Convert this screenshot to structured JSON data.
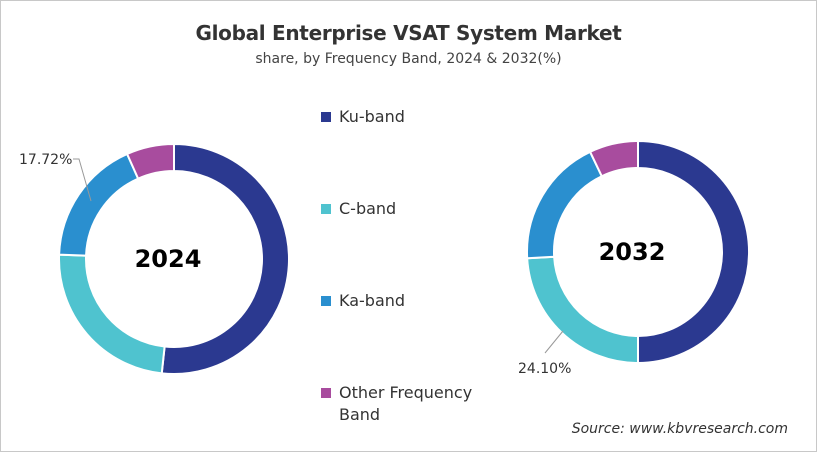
{
  "chart_data": [
    {
      "type": "pie",
      "title": "Global Enterprise VSAT System Market",
      "subtitle": "share, by Frequency Band, 2024 & 2032(%)",
      "center_label": "2024",
      "categories": [
        "Ku-band",
        "C-band",
        "Ka-band",
        "Other Frequency Band"
      ],
      "values": [
        51.7,
        23.9,
        17.72,
        6.68
      ],
      "data_labels": [
        {
          "category": "Ka-band",
          "text": "17.72%"
        }
      ],
      "colors": [
        "#2b3990",
        "#4fc3cf",
        "#2a8fcf",
        "#a84c9e"
      ],
      "legend": "center"
    },
    {
      "type": "pie",
      "center_label": "2032",
      "categories": [
        "Ku-band",
        "C-band",
        "Ka-band",
        "Other Frequency Band"
      ],
      "values": [
        50.0,
        24.1,
        18.8,
        7.1
      ],
      "data_labels": [
        {
          "category": "C-band",
          "text": "24.10%"
        }
      ],
      "colors": [
        "#2b3990",
        "#4fc3cf",
        "#2a8fcf",
        "#a84c9e"
      ],
      "legend": "center"
    }
  ],
  "legend": [
    {
      "label": "Ku-band",
      "color": "#2b3990"
    },
    {
      "label": "C-band",
      "color": "#4fc3cf"
    },
    {
      "label": "Ka-band",
      "color": "#2a8fcf"
    },
    {
      "label": "Other Frequency Band",
      "color": "#a84c9e"
    }
  ],
  "source": "Source: www.kbvresearch.com"
}
